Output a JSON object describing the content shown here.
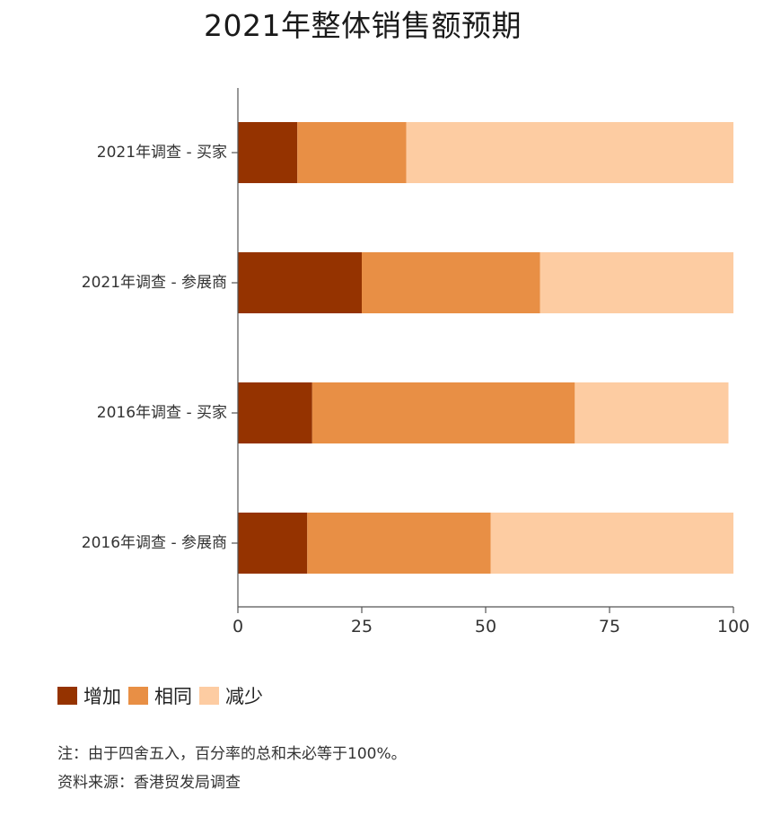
{
  "chart_data": {
    "type": "bar",
    "orientation": "horizontal",
    "stacked": true,
    "title": "2021年整体销售额预期",
    "categories": [
      "2021年调查 - 买家",
      "2021年调查 - 参展商",
      "2016年调查 - 买家",
      "2016年调查 - 参展商"
    ],
    "series": [
      {
        "name": "增加",
        "color": "#953300",
        "values": [
          12,
          25,
          15,
          14
        ]
      },
      {
        "name": "相同",
        "color": "#e88f45",
        "values": [
          22,
          36,
          53,
          37
        ]
      },
      {
        "name": "减少",
        "color": "#fdcca2",
        "values": [
          66,
          39,
          31,
          49
        ]
      }
    ],
    "xlim": [
      0,
      100
    ],
    "xticks": [
      "0",
      "25",
      "50",
      "75",
      "100"
    ],
    "legend_position": "bottom-left",
    "grid": false
  },
  "notes": {
    "line1": "注：由于四舍五入，百分率的总和未必等于100%。",
    "line2": "资料来源：香港贸发局调查"
  }
}
